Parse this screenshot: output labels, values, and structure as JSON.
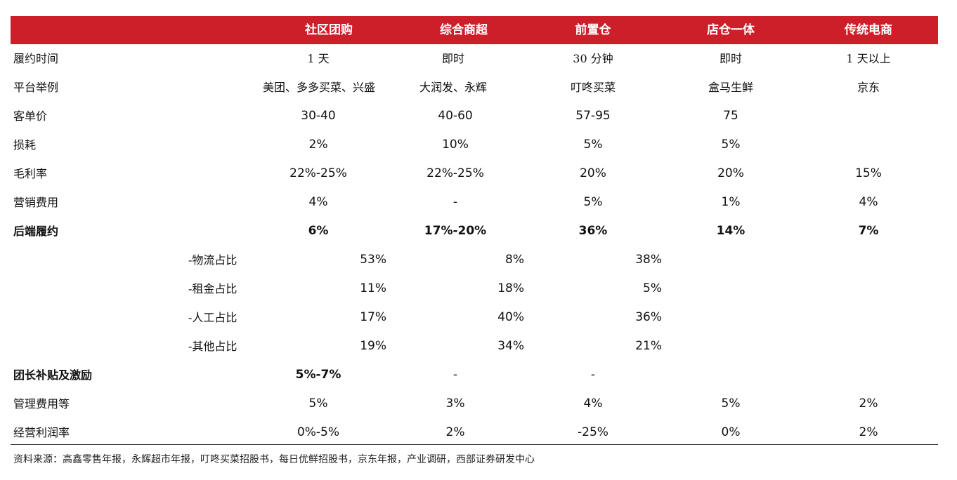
{
  "headers": [
    "社区团购",
    "综合商超",
    "前置仓",
    "店仓一体",
    "传统电商"
  ],
  "rows": [
    {
      "label": "履约时间",
      "values": [
        "1 天",
        "即时",
        "30 分钟",
        "即时",
        "1 天以上"
      ],
      "bold": false
    },
    {
      "label": "平台举例",
      "values": [
        "美团、多多买菜、兴盛",
        "大润发、永辉",
        "叮咚买菜",
        "盒马生鲜",
        "京东"
      ],
      "bold": false
    },
    {
      "label": "客单价",
      "values": [
        "30-40",
        "40-60",
        "57-95",
        "75",
        ""
      ],
      "bold": false
    },
    {
      "label": "损耗",
      "values": [
        "2%",
        "10%",
        "5%",
        "5%",
        ""
      ],
      "bold": false
    },
    {
      "label": "毛利率",
      "values": [
        "22%-25%",
        "22%-25%",
        "20%",
        "20%",
        "15%"
      ],
      "bold": false
    },
    {
      "label": "营销费用",
      "values": [
        "4%",
        "-",
        "5%",
        "1%",
        "4%"
      ],
      "bold": false
    },
    {
      "label": "后端履约",
      "values": [
        "6%",
        "17%-20%",
        "36%",
        "14%",
        "7%"
      ],
      "bold": true
    }
  ],
  "subrows": [
    {
      "label": "-物流占比",
      "values": [
        "53%",
        "8%",
        "38%"
      ]
    },
    {
      "label": "-租金占比",
      "values": [
        "11%",
        "18%",
        "5%"
      ]
    },
    {
      "label": "-人工占比",
      "values": [
        "17%",
        "40%",
        "36%"
      ]
    },
    {
      "label": "-其他占比",
      "values": [
        "19%",
        "34%",
        "21%"
      ]
    }
  ],
  "tail_rows": [
    {
      "label": "团长补贴及激励",
      "values": [
        "5%-7%",
        "-",
        "-",
        "",
        ""
      ],
      "bold_first": true
    },
    {
      "label": "管理费用等",
      "values": [
        "5%",
        "3%",
        "4%",
        "5%",
        "2%"
      ],
      "bold_first": false
    },
    {
      "label": "经营利润率",
      "values": [
        "0%-5%",
        "2%",
        "-25%",
        "0%",
        "2%"
      ],
      "bold_first": false
    }
  ],
  "source": "资料来源：高鑫零售年报，永辉超市年报，叮咚买菜招股书，每日优鲜招股书，京东年报，产业调研，西部证券研发中心",
  "colors": {
    "header_bg": "#cc1f2a",
    "header_text": "#ffffff"
  }
}
